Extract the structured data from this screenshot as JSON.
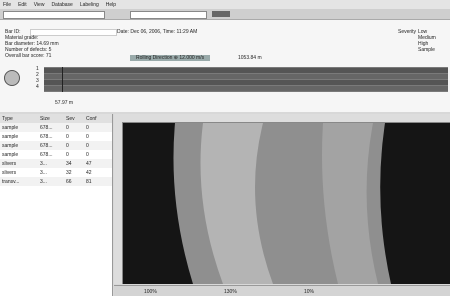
{
  "menu": [
    "File",
    "Edit",
    "View",
    "Database",
    "Labeling",
    "Help"
  ],
  "info": {
    "bar_id": "Bar ID:",
    "date": "Date: Dec 06, 2006, Time: 11:29 AM",
    "material": "Material grade:",
    "diameter": "Bar diameter: 14.69 mm",
    "defects": "Number of defects: 5",
    "score": "Overall bar score: 71"
  },
  "rolling": "Rolling Direction ⊕ 12.000 m/s",
  "length": "1053.84 m",
  "severity": {
    "title": "Severity",
    "items": [
      "Low",
      "Medium",
      "High",
      "Sample"
    ]
  },
  "tracks": [
    "1",
    "2",
    "3",
    "4"
  ],
  "position": "57.97 m",
  "table": {
    "headers": [
      "Type",
      "Size",
      "Sev",
      "Conf"
    ],
    "rows": [
      [
        "sample",
        "678...",
        "0",
        "0"
      ],
      [
        "sample",
        "678...",
        "0",
        "0"
      ],
      [
        "sample",
        "678...",
        "0",
        "0"
      ],
      [
        "sample",
        "678...",
        "0",
        "0"
      ],
      [
        "slivers",
        "3...",
        "34",
        "47"
      ],
      [
        "slivers",
        "3...",
        "32",
        "42"
      ],
      [
        "transv...",
        "3...",
        "66",
        "81"
      ]
    ]
  },
  "zoom": [
    "100%",
    "130%",
    "10%"
  ]
}
